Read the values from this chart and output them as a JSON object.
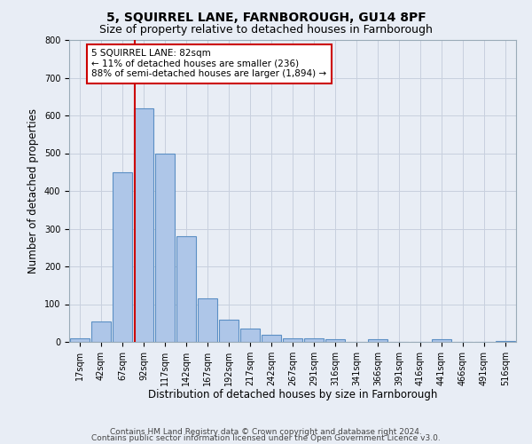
{
  "title1": "5, SQUIRREL LANE, FARNBOROUGH, GU14 8PF",
  "title2": "Size of property relative to detached houses in Farnborough",
  "xlabel": "Distribution of detached houses by size in Farnborough",
  "ylabel": "Number of detached properties",
  "bin_labels": [
    "17sqm",
    "42sqm",
    "67sqm",
    "92sqm",
    "117sqm",
    "142sqm",
    "167sqm",
    "192sqm",
    "217sqm",
    "242sqm",
    "267sqm",
    "291sqm",
    "316sqm",
    "341sqm",
    "366sqm",
    "391sqm",
    "416sqm",
    "441sqm",
    "466sqm",
    "491sqm",
    "516sqm"
  ],
  "bin_edges": [
    17,
    42,
    67,
    92,
    117,
    142,
    167,
    192,
    217,
    242,
    267,
    291,
    316,
    341,
    366,
    391,
    416,
    441,
    466,
    491,
    516,
    541
  ],
  "bar_values": [
    10,
    55,
    450,
    620,
    500,
    280,
    115,
    60,
    35,
    20,
    10,
    10,
    8,
    0,
    8,
    0,
    0,
    8,
    0,
    0,
    2
  ],
  "bar_color": "#aec6e8",
  "bar_edge_color": "#5b8fc4",
  "vline_x": 82,
  "vline_color": "#cc0000",
  "annotation_text": "5 SQUIRREL LANE: 82sqm\n← 11% of detached houses are smaller (236)\n88% of semi-detached houses are larger (1,894) →",
  "annotation_box_color": "#ffffff",
  "annotation_box_edge_color": "#cc0000",
  "ylim": [
    0,
    800
  ],
  "yticks": [
    0,
    100,
    200,
    300,
    400,
    500,
    600,
    700,
    800
  ],
  "grid_color": "#c8d0de",
  "background_color": "#e8edf5",
  "footer1": "Contains HM Land Registry data © Crown copyright and database right 2024.",
  "footer2": "Contains public sector information licensed under the Open Government Licence v3.0.",
  "title1_fontsize": 10,
  "title2_fontsize": 9,
  "xlabel_fontsize": 8.5,
  "ylabel_fontsize": 8.5,
  "tick_fontsize": 7,
  "annotation_fontsize": 7.5,
  "footer_fontsize": 6.5
}
